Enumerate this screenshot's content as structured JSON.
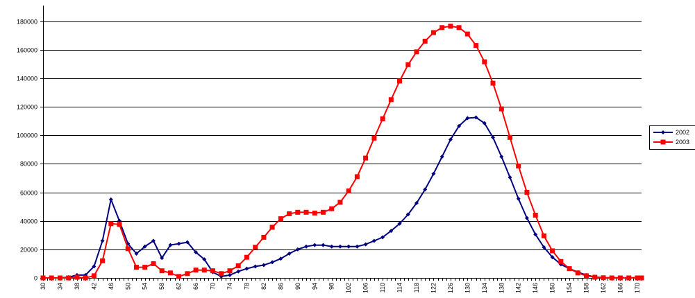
{
  "chart_data": {
    "type": "line",
    "title": "",
    "xlabel": "",
    "ylabel": "",
    "ylim": [
      0,
      190000
    ],
    "yticks": [
      0,
      20000,
      40000,
      60000,
      80000,
      100000,
      120000,
      140000,
      160000,
      180000
    ],
    "ytick_labels": [
      "0",
      "20000",
      "40000",
      "60000",
      "80000",
      "100000",
      "120000",
      "140000",
      "160000",
      "180000"
    ],
    "grid": "horizontal",
    "legend_position": "right",
    "x": [
      30,
      31,
      32,
      33,
      34,
      35,
      36,
      37,
      38,
      39,
      40,
      41,
      42,
      43,
      44,
      45,
      46,
      47,
      48,
      49,
      50,
      51,
      52,
      53,
      54,
      55,
      56,
      57,
      58,
      59,
      60,
      61,
      62,
      63,
      64,
      65,
      66,
      67,
      68,
      69,
      70,
      71,
      72,
      73,
      74,
      75,
      76,
      77,
      78,
      79,
      80,
      81,
      82,
      83,
      84,
      85,
      86,
      87,
      88,
      89,
      90,
      91,
      92,
      93,
      94,
      95,
      96,
      97,
      98,
      99,
      100,
      101,
      102,
      103,
      104,
      105,
      106,
      107,
      108,
      109,
      110,
      111,
      112,
      113,
      114,
      115,
      116,
      117,
      118,
      119,
      120,
      121,
      122,
      123,
      124,
      125,
      126,
      127,
      128,
      129,
      130,
      131,
      132,
      133,
      134,
      135,
      136,
      137,
      138,
      139,
      140,
      141,
      142,
      143,
      144,
      145,
      146,
      147,
      148,
      149,
      150,
      151,
      152,
      153,
      154,
      155,
      156,
      157,
      158,
      159,
      160,
      161,
      162,
      163,
      164,
      165,
      166,
      167,
      168,
      169,
      170,
      171
    ],
    "xtick_labels": [
      "30",
      "34",
      "38",
      "42",
      "46",
      "50",
      "54",
      "58",
      "62",
      "66",
      "70",
      "74",
      "78",
      "82",
      "86",
      "90",
      "94",
      "98",
      "102",
      "106",
      "110",
      "114",
      "118",
      "122",
      "126",
      "130",
      "134",
      "138",
      "142",
      "146",
      "150",
      "154",
      "158",
      "162",
      "166",
      "170"
    ],
    "series": [
      {
        "name": "2002",
        "color": "#000080",
        "marker": "diamond",
        "x": [
          30,
          32,
          34,
          36,
          38,
          40,
          42,
          44,
          46,
          48,
          50,
          52,
          54,
          56,
          58,
          60,
          62,
          64,
          66,
          68,
          70,
          72,
          74,
          76,
          78,
          80,
          82,
          84,
          86,
          88,
          90,
          92,
          94,
          96,
          98,
          100,
          102,
          104,
          106,
          108,
          110,
          112,
          114,
          116,
          118,
          120,
          122,
          124,
          126,
          128,
          130,
          132,
          134,
          136,
          138,
          140,
          142,
          144,
          146,
          148,
          150,
          152,
          154,
          156,
          158,
          160,
          162,
          164,
          166,
          168,
          170,
          171
        ],
        "values": [
          0,
          0,
          0,
          500,
          2000,
          2000,
          8000,
          26000,
          55000,
          40000,
          24000,
          17000,
          22000,
          26000,
          14000,
          23000,
          24000,
          25000,
          18000,
          13000,
          4000,
          1000,
          2000,
          4500,
          6500,
          8000,
          9000,
          11000,
          13500,
          17000,
          20000,
          22000,
          23000,
          23000,
          22000,
          22000,
          22000,
          22000,
          23500,
          26000,
          28500,
          33000,
          38000,
          44500,
          52500,
          62000,
          73000,
          85000,
          97000,
          106500,
          112000,
          112500,
          108500,
          98500,
          85000,
          70500,
          55500,
          42000,
          30500,
          21500,
          14500,
          9500,
          6500,
          4000,
          2000,
          600,
          200,
          100,
          100,
          100,
          100,
          100
        ]
      },
      {
        "name": "2003",
        "color": "#ff0000",
        "marker": "square",
        "x": [
          30,
          32,
          34,
          36,
          38,
          40,
          42,
          44,
          46,
          48,
          50,
          52,
          54,
          56,
          58,
          60,
          62,
          64,
          66,
          68,
          70,
          72,
          74,
          76,
          78,
          80,
          82,
          84,
          86,
          88,
          90,
          92,
          94,
          96,
          98,
          100,
          102,
          104,
          106,
          108,
          110,
          112,
          114,
          116,
          118,
          120,
          122,
          124,
          126,
          128,
          130,
          132,
          134,
          136,
          138,
          140,
          142,
          144,
          146,
          148,
          150,
          152,
          154,
          156,
          158,
          160,
          162,
          164,
          166,
          168,
          170,
          171
        ],
        "values": [
          0,
          0,
          0,
          0,
          500,
          0,
          1500,
          12000,
          38000,
          37500,
          20500,
          7500,
          7500,
          10000,
          5000,
          3500,
          1000,
          3000,
          5500,
          5500,
          5000,
          3000,
          5000,
          8500,
          14500,
          21500,
          28500,
          35500,
          41500,
          45000,
          46000,
          46000,
          45500,
          46000,
          48500,
          53000,
          61000,
          71000,
          84000,
          98000,
          111500,
          125000,
          138000,
          149500,
          158500,
          166000,
          172000,
          175500,
          176500,
          175500,
          171000,
          163000,
          151500,
          136500,
          118500,
          98500,
          78500,
          60000,
          44000,
          29500,
          19000,
          11500,
          6500,
          3500,
          1500,
          500,
          100,
          0,
          0,
          0,
          0,
          0
        ]
      }
    ]
  }
}
